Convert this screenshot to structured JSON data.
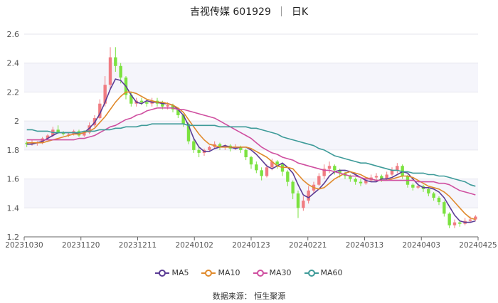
{
  "title": {
    "name": "吉视传媒 601929",
    "period": "日K"
  },
  "source": "数据来源：  恒生聚源",
  "chart_data": {
    "type": "candlestick",
    "title": "吉视传媒 601929",
    "subtitle": "日K",
    "x_ticks": [
      "20231030",
      "20231120",
      "20231211",
      "20240102",
      "20240123",
      "20240221",
      "20240313",
      "20240403",
      "20240425"
    ],
    "y_ticks": [
      1.2,
      1.4,
      1.6,
      1.8,
      2,
      2.2,
      2.4,
      2.6
    ],
    "ylim": [
      1.2,
      2.6
    ],
    "legend_position": "bottom",
    "up_color": "#f07c82",
    "down_color": "#7be23f",
    "series": [
      {
        "name": "MA5",
        "color": "#5b3c95",
        "values": [
          1.84,
          1.84,
          1.85,
          1.86,
          1.88,
          1.9,
          1.92,
          1.92,
          1.92,
          1.92,
          1.91,
          1.92,
          1.95,
          1.99,
          2.05,
          2.13,
          2.22,
          2.29,
          2.28,
          2.24,
          2.18,
          2.13,
          2.12,
          2.14,
          2.13,
          2.13,
          2.12,
          2.12,
          2.11,
          2.08,
          2.04,
          1.97,
          1.88,
          1.82,
          1.79,
          1.79,
          1.81,
          1.82,
          1.83,
          1.82,
          1.81,
          1.82,
          1.82,
          1.8,
          1.77,
          1.73,
          1.69,
          1.67,
          1.69,
          1.71,
          1.68,
          1.64,
          1.56,
          1.49,
          1.47,
          1.5,
          1.53,
          1.57,
          1.62,
          1.65,
          1.66,
          1.66,
          1.65,
          1.63,
          1.61,
          1.59,
          1.58,
          1.58,
          1.6,
          1.6,
          1.61,
          1.63,
          1.65,
          1.64,
          1.6,
          1.56,
          1.54,
          1.54,
          1.53,
          1.51,
          1.47,
          1.41,
          1.35,
          1.31,
          1.3,
          1.3,
          1.31
        ]
      },
      {
        "name": "MA10",
        "color": "#e08a2c",
        "values": [
          1.85,
          1.85,
          1.85,
          1.85,
          1.86,
          1.87,
          1.88,
          1.89,
          1.9,
          1.91,
          1.91,
          1.92,
          1.93,
          1.95,
          1.99,
          2.03,
          2.08,
          2.13,
          2.17,
          2.2,
          2.2,
          2.19,
          2.17,
          2.15,
          2.14,
          2.13,
          2.13,
          2.12,
          2.11,
          2.09,
          2.06,
          2.01,
          1.96,
          1.91,
          1.87,
          1.84,
          1.83,
          1.82,
          1.82,
          1.82,
          1.82,
          1.82,
          1.82,
          1.81,
          1.79,
          1.77,
          1.75,
          1.72,
          1.69,
          1.68,
          1.68,
          1.67,
          1.63,
          1.59,
          1.56,
          1.54,
          1.53,
          1.54,
          1.57,
          1.6,
          1.62,
          1.64,
          1.65,
          1.64,
          1.63,
          1.61,
          1.6,
          1.59,
          1.59,
          1.59,
          1.6,
          1.61,
          1.62,
          1.62,
          1.61,
          1.59,
          1.57,
          1.55,
          1.54,
          1.53,
          1.51,
          1.48,
          1.44,
          1.4,
          1.36,
          1.33,
          1.32
        ]
      },
      {
        "name": "MA30",
        "color": "#cf4fa0",
        "values": [
          1.87,
          1.87,
          1.87,
          1.87,
          1.87,
          1.87,
          1.87,
          1.87,
          1.87,
          1.87,
          1.88,
          1.88,
          1.89,
          1.9,
          1.92,
          1.94,
          1.96,
          1.97,
          1.99,
          2.01,
          2.02,
          2.04,
          2.05,
          2.07,
          2.08,
          2.09,
          2.09,
          2.09,
          2.09,
          2.08,
          2.08,
          2.07,
          2.06,
          2.05,
          2.04,
          2.03,
          2.02,
          2.0,
          1.98,
          1.96,
          1.94,
          1.92,
          1.9,
          1.88,
          1.85,
          1.82,
          1.8,
          1.78,
          1.77,
          1.75,
          1.74,
          1.73,
          1.71,
          1.7,
          1.69,
          1.68,
          1.67,
          1.66,
          1.66,
          1.65,
          1.64,
          1.63,
          1.62,
          1.62,
          1.61,
          1.6,
          1.6,
          1.59,
          1.59,
          1.59,
          1.59,
          1.59,
          1.59,
          1.59,
          1.59,
          1.58,
          1.58,
          1.58,
          1.58,
          1.57,
          1.57,
          1.56,
          1.54,
          1.52,
          1.51,
          1.5,
          1.49
        ]
      },
      {
        "name": "MA60",
        "color": "#3e9b99",
        "values": [
          1.94,
          1.94,
          1.93,
          1.93,
          1.93,
          1.92,
          1.92,
          1.92,
          1.92,
          1.92,
          1.92,
          1.93,
          1.93,
          1.93,
          1.94,
          1.94,
          1.94,
          1.95,
          1.95,
          1.96,
          1.96,
          1.96,
          1.97,
          1.97,
          1.98,
          1.98,
          1.98,
          1.98,
          1.98,
          1.98,
          1.98,
          1.97,
          1.97,
          1.97,
          1.97,
          1.97,
          1.97,
          1.96,
          1.96,
          1.96,
          1.96,
          1.96,
          1.96,
          1.95,
          1.95,
          1.94,
          1.93,
          1.92,
          1.91,
          1.89,
          1.88,
          1.87,
          1.86,
          1.85,
          1.84,
          1.83,
          1.81,
          1.8,
          1.78,
          1.76,
          1.75,
          1.74,
          1.73,
          1.72,
          1.71,
          1.71,
          1.7,
          1.69,
          1.68,
          1.67,
          1.66,
          1.66,
          1.65,
          1.65,
          1.64,
          1.64,
          1.64,
          1.63,
          1.63,
          1.62,
          1.62,
          1.61,
          1.6,
          1.59,
          1.58,
          1.56,
          1.55
        ]
      }
    ],
    "candles": [
      [
        1.85,
        1.84,
        1.86,
        1.82
      ],
      [
        1.84,
        1.85,
        1.87,
        1.83
      ],
      [
        1.85,
        1.85,
        1.86,
        1.83
      ],
      [
        1.85,
        1.88,
        1.89,
        1.84
      ],
      [
        1.88,
        1.9,
        1.91,
        1.87
      ],
      [
        1.9,
        1.94,
        1.96,
        1.89
      ],
      [
        1.94,
        1.92,
        1.97,
        1.91
      ],
      [
        1.92,
        1.91,
        1.93,
        1.9
      ],
      [
        1.91,
        1.91,
        1.92,
        1.89
      ],
      [
        1.91,
        1.93,
        1.94,
        1.9
      ],
      [
        1.93,
        1.9,
        1.94,
        1.89
      ],
      [
        1.9,
        1.92,
        1.93,
        1.89
      ],
      [
        1.92,
        1.97,
        1.99,
        1.91
      ],
      [
        1.97,
        2.02,
        2.04,
        1.96
      ],
      [
        2.02,
        2.12,
        2.15,
        2.01
      ],
      [
        2.12,
        2.25,
        2.31,
        2.1
      ],
      [
        2.25,
        2.44,
        2.51,
        2.22
      ],
      [
        2.44,
        2.38,
        2.51,
        2.34
      ],
      [
        2.38,
        2.3,
        2.4,
        2.26
      ],
      [
        2.3,
        2.18,
        2.31,
        2.15
      ],
      [
        2.18,
        2.12,
        2.2,
        2.1
      ],
      [
        2.12,
        2.14,
        2.16,
        2.1
      ],
      [
        2.14,
        2.13,
        2.16,
        2.11
      ],
      [
        2.13,
        2.12,
        2.15,
        2.1
      ],
      [
        2.12,
        2.14,
        2.16,
        2.1
      ],
      [
        2.14,
        2.12,
        2.16,
        2.1
      ],
      [
        2.12,
        2.1,
        2.14,
        2.08
      ],
      [
        2.1,
        2.11,
        2.13,
        2.08
      ],
      [
        2.11,
        2.08,
        2.12,
        2.06
      ],
      [
        2.08,
        2.04,
        2.09,
        2.02
      ],
      [
        2.04,
        1.98,
        2.05,
        1.96
      ],
      [
        1.98,
        1.86,
        1.99,
        1.84
      ],
      [
        1.86,
        1.8,
        1.88,
        1.78
      ],
      [
        1.8,
        1.78,
        1.82,
        1.75
      ],
      [
        1.78,
        1.8,
        1.81,
        1.76
      ],
      [
        1.8,
        1.82,
        1.83,
        1.79
      ],
      [
        1.82,
        1.84,
        1.86,
        1.81
      ],
      [
        1.84,
        1.82,
        1.85,
        1.8
      ],
      [
        1.82,
        1.83,
        1.84,
        1.8
      ],
      [
        1.83,
        1.81,
        1.84,
        1.79
      ],
      [
        1.81,
        1.82,
        1.84,
        1.8
      ],
      [
        1.82,
        1.8,
        1.83,
        1.78
      ],
      [
        1.8,
        1.75,
        1.81,
        1.73
      ],
      [
        1.75,
        1.7,
        1.76,
        1.67
      ],
      [
        1.7,
        1.66,
        1.72,
        1.64
      ],
      [
        1.66,
        1.62,
        1.68,
        1.59
      ],
      [
        1.62,
        1.68,
        1.7,
        1.61
      ],
      [
        1.68,
        1.72,
        1.74,
        1.66
      ],
      [
        1.72,
        1.7,
        1.73,
        1.67
      ],
      [
        1.7,
        1.65,
        1.71,
        1.62
      ],
      [
        1.65,
        1.58,
        1.66,
        1.55
      ],
      [
        1.58,
        1.5,
        1.59,
        1.46
      ],
      [
        1.5,
        1.4,
        1.52,
        1.33
      ],
      [
        1.4,
        1.45,
        1.48,
        1.38
      ],
      [
        1.45,
        1.52,
        1.55,
        1.43
      ],
      [
        1.52,
        1.56,
        1.58,
        1.5
      ],
      [
        1.56,
        1.62,
        1.64,
        1.55
      ],
      [
        1.62,
        1.67,
        1.7,
        1.6
      ],
      [
        1.67,
        1.69,
        1.72,
        1.64
      ],
      [
        1.69,
        1.66,
        1.7,
        1.63
      ],
      [
        1.66,
        1.64,
        1.67,
        1.61
      ],
      [
        1.64,
        1.62,
        1.65,
        1.6
      ],
      [
        1.62,
        1.6,
        1.63,
        1.58
      ],
      [
        1.6,
        1.58,
        1.61,
        1.56
      ],
      [
        1.58,
        1.57,
        1.6,
        1.55
      ],
      [
        1.57,
        1.59,
        1.61,
        1.56
      ],
      [
        1.59,
        1.61,
        1.63,
        1.58
      ],
      [
        1.61,
        1.62,
        1.64,
        1.59
      ],
      [
        1.62,
        1.6,
        1.63,
        1.58
      ],
      [
        1.6,
        1.63,
        1.65,
        1.59
      ],
      [
        1.63,
        1.66,
        1.68,
        1.62
      ],
      [
        1.66,
        1.69,
        1.71,
        1.64
      ],
      [
        1.69,
        1.62,
        1.7,
        1.6
      ],
      [
        1.62,
        1.56,
        1.63,
        1.54
      ],
      [
        1.56,
        1.54,
        1.57,
        1.52
      ],
      [
        1.54,
        1.55,
        1.57,
        1.53
      ],
      [
        1.55,
        1.53,
        1.56,
        1.51
      ],
      [
        1.53,
        1.5,
        1.54,
        1.48
      ],
      [
        1.5,
        1.47,
        1.51,
        1.45
      ],
      [
        1.47,
        1.44,
        1.48,
        1.42
      ],
      [
        1.44,
        1.36,
        1.45,
        1.34
      ],
      [
        1.36,
        1.28,
        1.37,
        1.26
      ],
      [
        1.28,
        1.3,
        1.32,
        1.26
      ],
      [
        1.3,
        1.29,
        1.31,
        1.27
      ],
      [
        1.29,
        1.31,
        1.33,
        1.28
      ],
      [
        1.31,
        1.32,
        1.34,
        1.3
      ],
      [
        1.32,
        1.34,
        1.35,
        1.31
      ]
    ]
  }
}
